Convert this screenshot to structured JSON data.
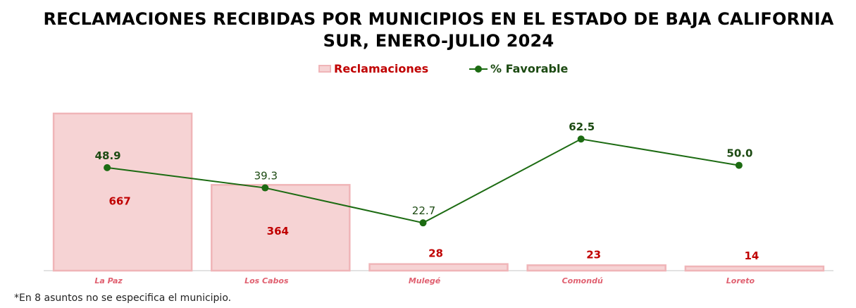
{
  "chart_data": {
    "type": "bar",
    "title": "RECLAMACIONES RECIBIDAS POR MUNICIPIOS EN EL ESTADO DE BAJA CALIFORNIA SUR, ENERO-JULIO 2024",
    "categories": [
      "La Paz",
      "Los Cabos",
      "Mulegé",
      "Comondú",
      "Loreto"
    ],
    "series": [
      {
        "name": "Reclamaciones",
        "type": "bar",
        "values": [
          667,
          364,
          28,
          23,
          14
        ],
        "labels": [
          "667",
          "364",
          "28",
          "23",
          "14"
        ]
      },
      {
        "name": "% Favorable",
        "type": "line",
        "values": [
          48.9,
          39.3,
          22.7,
          62.5,
          50.0
        ],
        "labels": [
          "48.9",
          "39.3",
          "22.7",
          "62.5",
          "50.0"
        ]
      }
    ],
    "ylim_bars": [
      0,
      700
    ],
    "ylim_line": [
      0,
      85
    ],
    "grid": false,
    "legend": "top-center"
  },
  "colors": {
    "bar_fill": "#f6d3d4",
    "bar_edge": "#f0b5b8",
    "bar_label": "#c00000",
    "line": "#1c6b12",
    "line_label": "#1c4a12",
    "category_label": "#e06070",
    "axis": "#d9d9d9"
  },
  "footnote": "*En 8 asuntos no se especifica el municipio."
}
